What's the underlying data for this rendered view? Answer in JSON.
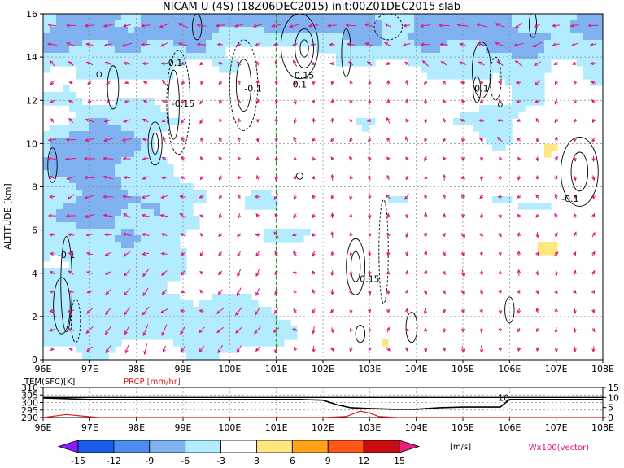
{
  "title": "NICAM U (4S) (18Z06DEC2015) init:00Z01DEC2015 slab",
  "chart_data": [
    {
      "type": "heatmap",
      "title": "NICAM U (4S) (18Z06DEC2015) init:00Z01DEC2015 slab",
      "xlabel": "",
      "ylabel": "ALTITUDE [km]",
      "x_ticks": [
        "96E",
        "97E",
        "98E",
        "99E",
        "100E",
        "101E",
        "102E",
        "103E",
        "104E",
        "105E",
        "106E",
        "107E",
        "108E"
      ],
      "y_ticks": [
        "0",
        "2",
        "4",
        "6",
        "8",
        "10",
        "12",
        "14",
        "16"
      ],
      "xlim": [
        96,
        108
      ],
      "ylim": [
        0,
        16
      ],
      "grid": true,
      "shaded_variable": "U [m/s]",
      "contour_labels": [
        {
          "text": "-0.1",
          "x": 98.8,
          "y": 13.6
        },
        {
          "text": "-0.1",
          "x": 100.5,
          "y": 12.4
        },
        {
          "text": "-0.15",
          "x": 99.0,
          "y": 11.7
        },
        {
          "text": "0.15",
          "x": 101.6,
          "y": 13.0
        },
        {
          "text": "0.1",
          "x": 101.5,
          "y": 12.6
        },
        {
          "text": "0.1",
          "x": 105.4,
          "y": 12.4
        },
        {
          "text": "-0.1",
          "x": 107.3,
          "y": 7.3
        },
        {
          "text": "-0.1",
          "x": 96.5,
          "y": 4.7
        },
        {
          "text": "0.15",
          "x": 103.0,
          "y": 3.6
        }
      ],
      "reference_longitude": 101,
      "vector_label": "Wx100(vector)"
    },
    {
      "type": "line",
      "series": [
        {
          "name": "TEM(SFC)[K]",
          "x": [
            96,
            97,
            98,
            99,
            100,
            101,
            101.5,
            102,
            102.3,
            102.6,
            103,
            103.5,
            104,
            104.5,
            105,
            105.5,
            105.8,
            106,
            107,
            108
          ],
          "values": [
            303,
            302,
            302,
            302,
            302,
            302,
            302,
            301.5,
            298.5,
            296.5,
            296,
            295.5,
            295.5,
            296.5,
            297,
            297,
            297,
            302,
            302,
            302
          ]
        },
        {
          "name": "PRCP [mm/hr]",
          "x": [
            96,
            96.5,
            96.8,
            97.2,
            98,
            99,
            100,
            101,
            102,
            102.5,
            102.8,
            103,
            103.2,
            103.6,
            104,
            105,
            106,
            107,
            108
          ],
          "values": [
            0,
            1.5,
            0.8,
            0,
            0,
            0,
            0,
            0,
            0,
            0.5,
            3.2,
            2.2,
            0.5,
            0,
            0,
            0,
            0,
            0,
            0
          ]
        }
      ],
      "left_axis": {
        "label": "TEM(SFC)[K]",
        "ticks": [
          "290",
          "295",
          "300",
          "305",
          "310"
        ],
        "ylim": [
          290,
          310
        ]
      },
      "right_axis": {
        "label": "PRCP [mm/hr]",
        "ticks": [
          "0",
          "5",
          "10",
          "15"
        ],
        "ylim": [
          0,
          15
        ]
      },
      "annotation": "10",
      "xlim": [
        96,
        108
      ],
      "x_ticks": [
        "96E",
        "97E",
        "98E",
        "99E",
        "100E",
        "101E",
        "102E",
        "103E",
        "104E",
        "105E",
        "106E",
        "107E",
        "108E"
      ]
    }
  ],
  "colorbar": {
    "ticks": [
      "-15",
      "-12",
      "-9",
      "-6",
      "-3",
      "3",
      "6",
      "9",
      "12",
      "15"
    ],
    "colors": [
      "#8c1aff",
      "#1a5ee6",
      "#4d8cf0",
      "#80b2f2",
      "#b3ecff",
      "#ffffff",
      "#ffe680",
      "#ffa31a",
      "#ff5719",
      "#c80c12",
      "#e6207a"
    ],
    "unit": "[m/s]"
  },
  "colors": {
    "wind_vector": "#e0147c",
    "reference_line": "#11aa11",
    "temperature_line": "#000000",
    "precip_line": "#e02020",
    "contour": "#000000"
  }
}
